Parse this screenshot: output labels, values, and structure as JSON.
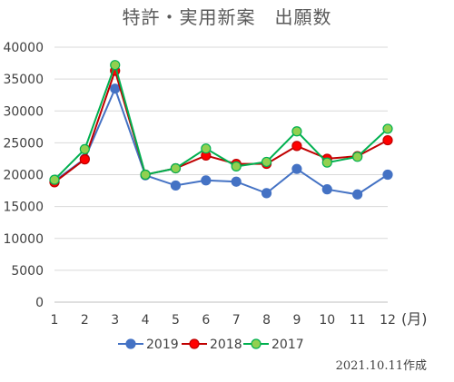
{
  "chart_data": {
    "type": "line",
    "title": "特許・実用新案　出願数",
    "x": [
      "1",
      "2",
      "3",
      "4",
      "5",
      "6",
      "7",
      "8",
      "9",
      "10",
      "11",
      "12"
    ],
    "x_unit": "(月)",
    "ylim": [
      0,
      40000
    ],
    "y_ticks": [
      "0",
      "5000",
      "10000",
      "15000",
      "20000",
      "25000",
      "30000",
      "35000",
      "40000"
    ],
    "y_tick_values": [
      0,
      5000,
      10000,
      15000,
      20000,
      25000,
      30000,
      35000,
      40000
    ],
    "grid": true,
    "legend_position": "bottom",
    "series": [
      {
        "name": "2019",
        "color": "#4472c4",
        "marker_fill": "#4472c4",
        "values": [
          19000,
          22500,
          33500,
          19900,
          18300,
          19100,
          18900,
          17100,
          20900,
          17700,
          16900,
          20000
        ]
      },
      {
        "name": "2018",
        "color": "#c00000",
        "marker_fill": "#ff0000",
        "values": [
          18800,
          22400,
          36300,
          20000,
          21000,
          23000,
          21700,
          21700,
          24500,
          22500,
          22900,
          25400
        ]
      },
      {
        "name": "2017",
        "color": "#00b050",
        "marker_fill": "#92d050",
        "values": [
          19200,
          24000,
          37200,
          20000,
          21000,
          24100,
          21300,
          22000,
          26800,
          21900,
          22800,
          27200
        ]
      }
    ]
  },
  "note": "2021.10.11作成"
}
